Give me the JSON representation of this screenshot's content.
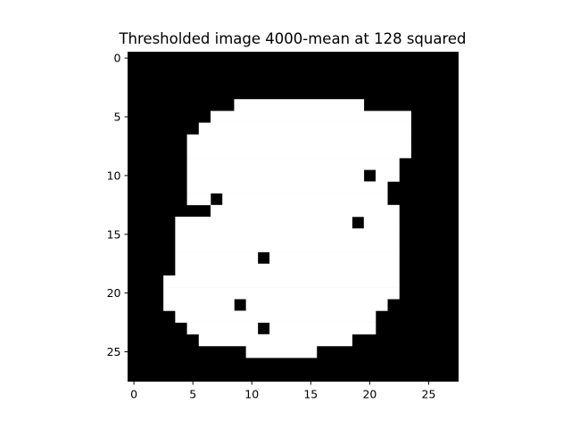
{
  "chart_data": {
    "type": "heatmap",
    "title": "Thresholded image 4000-mean at 128 squared",
    "xlabel": "",
    "ylabel": "",
    "rows": 28,
    "cols": 28,
    "xlim": [
      -0.5,
      27.5
    ],
    "ylim": [
      27.5,
      -0.5
    ],
    "x_ticks": [
      0,
      5,
      10,
      15,
      20,
      25
    ],
    "y_ticks": [
      0,
      5,
      10,
      15,
      20,
      25
    ],
    "grid": false,
    "legend": "none",
    "colormap": {
      "0": "#000000",
      "1": "#ffffff"
    },
    "white_row_spans": [
      [],
      [],
      [],
      [],
      [
        [
          9,
          19
        ]
      ],
      [
        [
          7,
          23
        ]
      ],
      [
        [
          6,
          23
        ]
      ],
      [
        [
          5,
          23
        ]
      ],
      [
        [
          5,
          23
        ]
      ],
      [
        [
          5,
          22
        ]
      ],
      [
        [
          5,
          19
        ],
        [
          21,
          22
        ]
      ],
      [
        [
          5,
          21
        ]
      ],
      [
        [
          5,
          6
        ],
        [
          8,
          21
        ]
      ],
      [
        [
          7,
          22
        ]
      ],
      [
        [
          4,
          18
        ],
        [
          20,
          22
        ]
      ],
      [
        [
          4,
          22
        ]
      ],
      [
        [
          4,
          22
        ]
      ],
      [
        [
          4,
          10
        ],
        [
          12,
          22
        ]
      ],
      [
        [
          4,
          22
        ]
      ],
      [
        [
          3,
          22
        ]
      ],
      [
        [
          3,
          22
        ]
      ],
      [
        [
          3,
          8
        ],
        [
          10,
          21
        ]
      ],
      [
        [
          4,
          20
        ]
      ],
      [
        [
          5,
          10
        ],
        [
          12,
          20
        ]
      ],
      [
        [
          6,
          18
        ]
      ],
      [
        [
          10,
          15
        ]
      ],
      [],
      []
    ]
  }
}
